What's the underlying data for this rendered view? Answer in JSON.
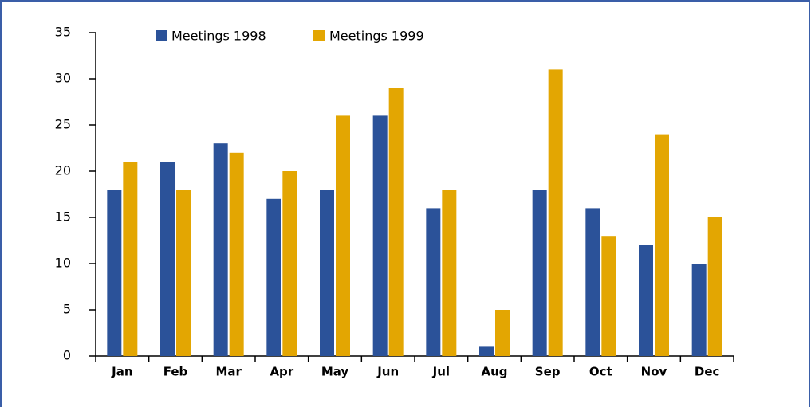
{
  "chart_data": {
    "type": "bar",
    "categories": [
      "Jan",
      "Feb",
      "Mar",
      "Apr",
      "May",
      "Jun",
      "Jul",
      "Aug",
      "Sep",
      "Oct",
      "Nov",
      "Dec"
    ],
    "series": [
      {
        "name": "Meetings 1998",
        "color": "#2b5299",
        "values": [
          18,
          21,
          23,
          17,
          18,
          26,
          16,
          1,
          18,
          16,
          12,
          10
        ]
      },
      {
        "name": "Meetings 1999",
        "color": "#e3a602",
        "values": [
          21,
          18,
          22,
          20,
          26,
          29,
          18,
          5,
          31,
          13,
          24,
          15
        ]
      }
    ],
    "ylim": [
      0,
      35
    ],
    "yticks": [
      0,
      5,
      10,
      15,
      20,
      25,
      30,
      35
    ],
    "grid": false,
    "legend": "top"
  }
}
